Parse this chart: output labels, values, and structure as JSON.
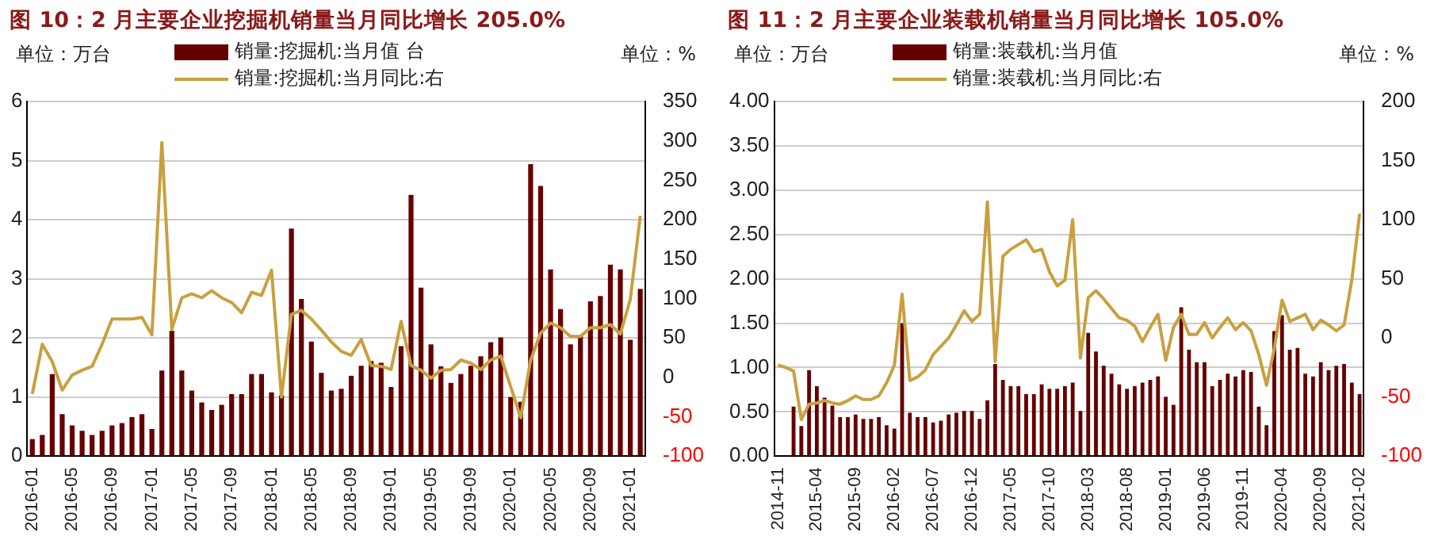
{
  "chart_data": [
    {
      "type": "bar",
      "title": "图 10：2 月主要企业挖掘机销量当月同比增长 205.0%",
      "ylabel": "单位：万台",
      "y2label": "单位：%",
      "categories": [
        "2016-01",
        null,
        null,
        null,
        "2016-05",
        null,
        null,
        null,
        "2016-09",
        null,
        null,
        null,
        "2017-01",
        null,
        null,
        null,
        "2017-05",
        null,
        null,
        null,
        "2017-09",
        null,
        null,
        null,
        "2018-01",
        null,
        null,
        null,
        "2018-05",
        null,
        null,
        null,
        "2018-09",
        null,
        null,
        null,
        "2019-01",
        null,
        null,
        null,
        "2019-05",
        null,
        null,
        null,
        "2019-09",
        null,
        null,
        null,
        "2020-01",
        null,
        null,
        null,
        "2020-05",
        null,
        null,
        null,
        "2020-09",
        null,
        null,
        null,
        "2021-01",
        null
      ],
      "series": [
        {
          "name": "销量:挖掘机:当月值 台",
          "color": "#660000",
          "values": [
            0.29,
            0.36,
            1.39,
            0.71,
            0.52,
            0.43,
            0.36,
            0.43,
            0.52,
            0.56,
            0.66,
            0.71,
            0.46,
            1.45,
            2.12,
            1.45,
            1.11,
            0.91,
            0.78,
            0.87,
            1.05,
            1.05,
            1.39,
            1.39,
            1.08,
            1.03,
            3.85,
            2.66,
            1.94,
            1.41,
            1.11,
            1.14,
            1.36,
            1.53,
            1.61,
            1.58,
            1.17,
            1.86,
            4.42,
            2.85,
            1.89,
            1.52,
            1.24,
            1.39,
            1.53,
            1.69,
            1.93,
            2.01,
            1.0,
            0.92,
            4.94,
            4.57,
            3.16,
            2.49,
            1.89,
            2.03,
            2.62,
            2.71,
            3.24,
            3.16,
            1.97,
            2.83
          ]
        },
        {
          "name": "销量:挖掘机:当月同比:右",
          "type": "line",
          "axis": "y2",
          "color": "#c9a040",
          "values": [
            -21,
            42,
            20,
            -16,
            3,
            9,
            14,
            42,
            74,
            74,
            74,
            76,
            54,
            298,
            61,
            101,
            106,
            101,
            110,
            101,
            95,
            82,
            108,
            104,
            136,
            -25,
            80,
            85,
            74,
            60,
            45,
            33,
            28,
            48,
            15,
            14,
            10,
            71,
            15,
            9,
            -1,
            9,
            10,
            22,
            18,
            10,
            22,
            27,
            -12,
            -51,
            22,
            56,
            69,
            63,
            52,
            52,
            63,
            63,
            67,
            55,
            99,
            205
          ]
        }
      ],
      "ylim": [
        0,
        6
      ],
      "yticks": [
        0,
        1,
        2,
        3,
        4,
        5,
        6
      ],
      "y2lim": [
        -100,
        350
      ],
      "y2ticks": [
        -100,
        -50,
        0,
        50,
        100,
        150,
        200,
        250,
        300,
        350
      ],
      "grid": "y",
      "legend": "top",
      "marker": "none"
    },
    {
      "type": "bar",
      "title": "图 11：2 月主要企业装载机销量当月同比增长 105.0%",
      "ylabel": "单位：万台",
      "y2label": "单位：%",
      "categories": [
        "2014-11",
        null,
        null,
        null,
        null,
        "2015-04",
        null,
        null,
        null,
        null,
        "2015-09",
        null,
        null,
        null,
        null,
        "2016-02",
        null,
        null,
        null,
        null,
        "2016-07",
        null,
        null,
        null,
        null,
        "2016-12",
        null,
        null,
        null,
        null,
        "2017-05",
        null,
        null,
        null,
        null,
        "2017-10",
        null,
        null,
        null,
        null,
        "2018-03",
        null,
        null,
        null,
        null,
        "2018-08",
        null,
        null,
        null,
        null,
        "2019-01",
        null,
        null,
        null,
        null,
        "2019-06",
        null,
        null,
        null,
        null,
        "2019-11",
        null,
        null,
        null,
        null,
        "2020-04",
        null,
        null,
        null,
        null,
        "2020-09",
        null,
        null,
        null,
        null,
        "2021-02"
      ],
      "series": [
        {
          "name": "销量:装载机:当月值",
          "color": "#660000",
          "values": [
            null,
            null,
            0.56,
            0.34,
            0.97,
            0.79,
            0.66,
            0.57,
            0.44,
            0.44,
            0.47,
            0.42,
            0.42,
            0.44,
            0.35,
            0.31,
            1.5,
            0.49,
            0.44,
            0.44,
            0.38,
            0.4,
            0.47,
            0.49,
            0.51,
            0.51,
            0.42,
            0.63,
            1.04,
            0.86,
            0.79,
            0.79,
            0.7,
            0.7,
            0.81,
            0.76,
            0.76,
            0.79,
            0.83,
            0.51,
            1.39,
            1.18,
            1.02,
            0.93,
            0.81,
            0.76,
            0.79,
            0.83,
            0.86,
            0.9,
            0.67,
            0.58,
            1.68,
            1.2,
            1.06,
            1.06,
            0.79,
            0.86,
            0.93,
            0.9,
            0.97,
            0.95,
            0.56,
            0.35,
            1.41,
            1.59,
            1.2,
            1.22,
            0.93,
            0.9,
            1.06,
            0.97,
            1.02,
            1.04,
            0.83,
            0.7
          ]
        },
        {
          "name": "销量:装载机:当月同比:右",
          "type": "line",
          "axis": "y2",
          "color": "#c9a040",
          "values": [
            -23,
            -25,
            -28,
            -69,
            -56,
            -55,
            -53,
            -55,
            -56,
            -53,
            -49,
            -52,
            -52,
            -49,
            -38,
            -23,
            37,
            -36,
            -33,
            -27,
            -14,
            -7,
            0,
            11,
            23,
            14,
            20,
            115,
            -20,
            69,
            75,
            79,
            83,
            73,
            75,
            56,
            44,
            49,
            100,
            -17,
            34,
            40,
            33,
            25,
            17,
            15,
            10,
            -3,
            9,
            20,
            -19,
            9,
            20,
            3,
            3,
            13,
            0,
            9,
            17,
            7,
            13,
            6,
            -14,
            -40,
            -9,
            32,
            14,
            17,
            20,
            7,
            15,
            11,
            6,
            11,
            49,
            105
          ]
        }
      ],
      "ylim": [
        0,
        4
      ],
      "yticks": [
        {
          "value": 0,
          "label": "0.00"
        },
        {
          "value": 0.5,
          "label": "0.50"
        },
        {
          "value": 1,
          "label": "1.00"
        },
        {
          "value": 1.5,
          "label": "1.50"
        },
        {
          "value": 2,
          "label": "2.00"
        },
        {
          "value": 2.5,
          "label": "2.50"
        },
        {
          "value": 3,
          "label": "3.00"
        },
        {
          "value": 3.5,
          "label": "3.50"
        },
        {
          "value": 4,
          "label": "4.00"
        }
      ],
      "y2lim": [
        -100,
        200
      ],
      "y2ticks": [
        -100,
        -50,
        0,
        50,
        100,
        150,
        200
      ],
      "grid": "y",
      "legend": "top",
      "marker": "none"
    }
  ]
}
